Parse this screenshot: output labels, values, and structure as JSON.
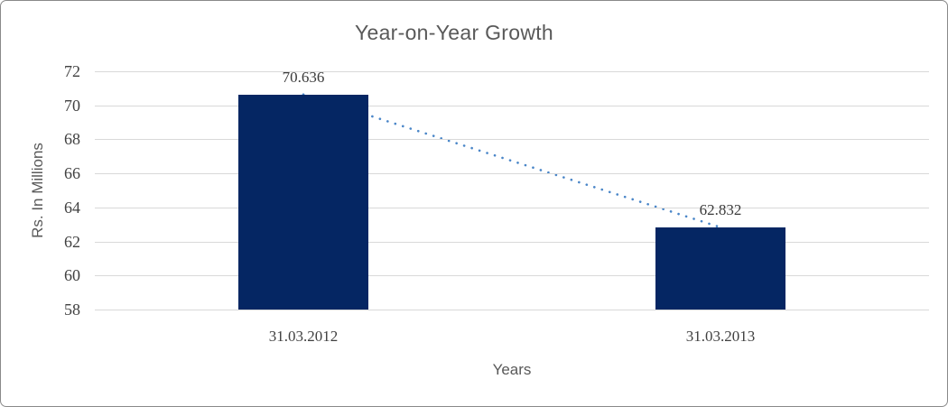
{
  "chart_data": {
    "type": "bar",
    "title": "Year-on-Year Growth",
    "xlabel": "Years",
    "ylabel": "Rs. In Millions",
    "categories": [
      "31.03.2012",
      "31.03.2013"
    ],
    "values": [
      70.636,
      62.832
    ],
    "data_labels": [
      "70.636",
      "62.832"
    ],
    "yticks": [
      58,
      60,
      62,
      64,
      66,
      68,
      70,
      72
    ],
    "ylim": [
      58,
      72
    ],
    "grid": true,
    "legend_position": "none",
    "trendline": {
      "style": "dotted",
      "points": [
        70.636,
        62.832
      ]
    },
    "colors": {
      "bar": "#052663",
      "trendline": "#4A86C8",
      "gridline": "#D9D9D9",
      "title_text": "#595959",
      "axis_tick_text": "#404040",
      "data_label_text": "#3A3A3A",
      "axis_title_text": "#595959",
      "background": "#FFFFFF",
      "border": "#898989"
    }
  }
}
